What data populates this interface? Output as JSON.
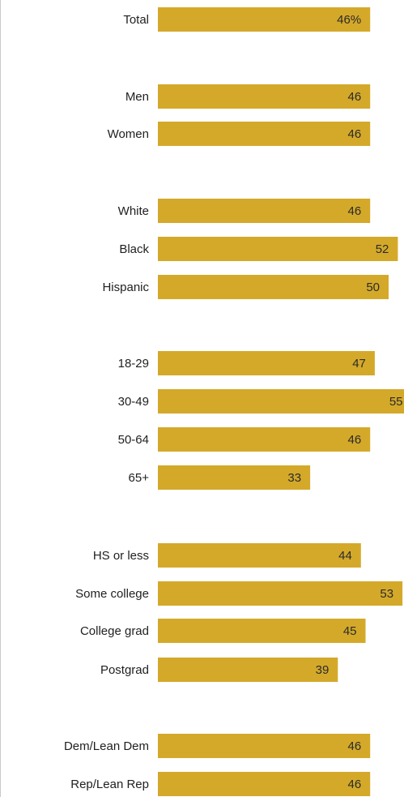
{
  "chart_data": {
    "type": "bar",
    "orientation": "horizontal",
    "bar_color": "#d4a92a",
    "categories": [
      "Total",
      "Men",
      "Women",
      "White",
      "Black",
      "Hispanic",
      "18-29",
      "30-49",
      "50-64",
      "65+",
      "HS or less",
      "Some college",
      "College grad",
      "Postgrad",
      "Dem/Lean Dem",
      "Rep/Lean Rep"
    ],
    "values": [
      46,
      46,
      46,
      46,
      52,
      50,
      47,
      55,
      46,
      33,
      44,
      53,
      45,
      39,
      46,
      46
    ],
    "value_labels": [
      "46%",
      "46",
      "46",
      "46",
      "52",
      "50",
      "47",
      "55",
      "46",
      "33",
      "44",
      "53",
      "45",
      "39",
      "46",
      "46"
    ],
    "groups": [
      [
        "Total"
      ],
      [
        "Men",
        "Women"
      ],
      [
        "White",
        "Black",
        "Hispanic"
      ],
      [
        "18-29",
        "30-49",
        "50-64",
        "65+"
      ],
      [
        "HS or less",
        "Some college",
        "College grad",
        "Postgrad"
      ],
      [
        "Dem/Lean Dem",
        "Rep/Lean Rep"
      ]
    ],
    "grid": false,
    "legend": "none"
  }
}
